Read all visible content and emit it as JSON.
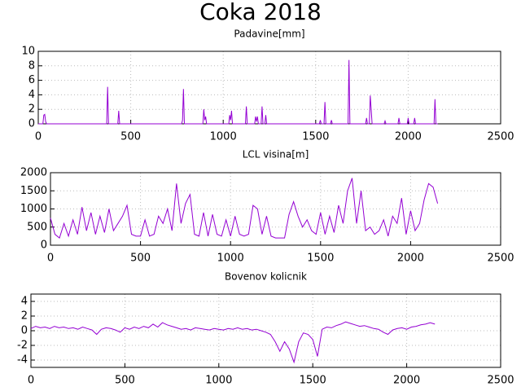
{
  "title": "Coka 2018",
  "chart_data": [
    {
      "type": "line",
      "title": "Padavine[mm]",
      "color": "#9400d3",
      "grid": true,
      "xlim": [
        0,
        2500
      ],
      "xticks": [
        0,
        500,
        1000,
        1500,
        2000,
        2500
      ],
      "ylim": [
        0,
        10
      ],
      "yticks": [
        0,
        2,
        4,
        6,
        8,
        10
      ],
      "x": [
        0,
        25,
        30,
        35,
        40,
        45,
        370,
        375,
        380,
        430,
        435,
        440,
        775,
        780,
        785,
        790,
        890,
        895,
        900,
        905,
        910,
        1030,
        1035,
        1040,
        1045,
        1050,
        1120,
        1125,
        1130,
        1170,
        1175,
        1180,
        1185,
        1190,
        1205,
        1210,
        1215,
        1225,
        1230,
        1235,
        1520,
        1525,
        1530,
        1545,
        1550,
        1555,
        1580,
        1585,
        1590,
        1675,
        1680,
        1685,
        1770,
        1775,
        1780,
        1790,
        1795,
        1800,
        1805,
        1870,
        1875,
        1880,
        1945,
        1950,
        1955,
        1995,
        2000,
        2005,
        2030,
        2035,
        2040,
        2140,
        2145,
        2150,
        2160
      ],
      "values": [
        0,
        0,
        1.2,
        1.3,
        0.3,
        0,
        0,
        5.1,
        0,
        0,
        1.8,
        0,
        0,
        0.5,
        4.8,
        0,
        0,
        2,
        0.5,
        1,
        0,
        0,
        1.2,
        0.5,
        1.8,
        0,
        0,
        2.4,
        0,
        0,
        1,
        0.3,
        1,
        0,
        0,
        2.4,
        0,
        0,
        1.2,
        0,
        0,
        0.5,
        0,
        0,
        3,
        0,
        0,
        0.5,
        0,
        0,
        8.8,
        0,
        0,
        0.8,
        0,
        0,
        3.9,
        2,
        0,
        0,
        0.4,
        0,
        0,
        0.8,
        0,
        0,
        0.8,
        0,
        0,
        0.8,
        0,
        0,
        3.4,
        0,
        0
      ]
    },
    {
      "type": "line",
      "title": "LCL visina[m]",
      "color": "#9400d3",
      "grid": true,
      "xlim": [
        0,
        2500
      ],
      "xticks": [
        0,
        500,
        1000,
        1500,
        2000,
        2500
      ],
      "ylim": [
        0,
        2000
      ],
      "yticks": [
        0,
        500,
        1000,
        1500,
        2000
      ],
      "x": [
        0,
        25,
        50,
        75,
        100,
        125,
        150,
        175,
        200,
        225,
        250,
        275,
        300,
        325,
        350,
        375,
        400,
        425,
        450,
        475,
        500,
        525,
        550,
        575,
        600,
        625,
        650,
        675,
        700,
        725,
        750,
        775,
        800,
        825,
        850,
        875,
        900,
        925,
        950,
        975,
        1000,
        1025,
        1050,
        1075,
        1100,
        1125,
        1150,
        1175,
        1200,
        1225,
        1250,
        1275,
        1300,
        1325,
        1350,
        1375,
        1400,
        1425,
        1450,
        1475,
        1500,
        1525,
        1550,
        1575,
        1600,
        1625,
        1650,
        1675,
        1700,
        1725,
        1750,
        1775,
        1800,
        1825,
        1850,
        1875,
        1900,
        1925,
        1950,
        1975,
        2000,
        2025,
        2050,
        2075,
        2100,
        2125,
        2150
      ],
      "values": [
        750,
        300,
        200,
        600,
        250,
        700,
        300,
        1050,
        400,
        900,
        300,
        800,
        350,
        1000,
        400,
        600,
        800,
        1100,
        300,
        250,
        250,
        700,
        250,
        300,
        800,
        600,
        1000,
        400,
        1700,
        600,
        1150,
        1400,
        300,
        250,
        900,
        250,
        850,
        300,
        250,
        700,
        250,
        800,
        300,
        250,
        300,
        1100,
        1000,
        300,
        800,
        250,
        200,
        200,
        200,
        850,
        1200,
        800,
        500,
        700,
        400,
        300,
        900,
        300,
        800,
        350,
        1100,
        600,
        1500,
        1850,
        600,
        1500,
        400,
        500,
        300,
        400,
        700,
        250,
        800,
        600,
        1300,
        300,
        950,
        400,
        600,
        1250,
        1700,
        1600,
        1150
      ]
    },
    {
      "type": "line",
      "title": "Bovenov kolicnik",
      "color": "#9400d3",
      "grid": true,
      "xlim": [
        0,
        2500
      ],
      "xticks": [
        0,
        500,
        1000,
        1500,
        2000,
        2500
      ],
      "ylim": [
        -5,
        5
      ],
      "yticks": [
        -4,
        -2,
        0,
        2,
        4
      ],
      "x": [
        0,
        25,
        50,
        75,
        100,
        125,
        150,
        175,
        200,
        225,
        250,
        275,
        300,
        325,
        350,
        375,
        400,
        425,
        450,
        475,
        500,
        525,
        550,
        575,
        600,
        625,
        650,
        675,
        700,
        725,
        750,
        775,
        800,
        825,
        850,
        875,
        900,
        925,
        950,
        975,
        1000,
        1025,
        1050,
        1075,
        1100,
        1125,
        1150,
        1175,
        1200,
        1225,
        1250,
        1275,
        1300,
        1325,
        1350,
        1375,
        1400,
        1425,
        1450,
        1475,
        1500,
        1525,
        1550,
        1575,
        1600,
        1625,
        1650,
        1675,
        1700,
        1725,
        1750,
        1775,
        1800,
        1825,
        1850,
        1875,
        1900,
        1925,
        1950,
        1975,
        2000,
        2025,
        2050,
        2075,
        2100,
        2125,
        2150
      ],
      "values": [
        0.3,
        0.6,
        0.4,
        0.5,
        0.3,
        0.6,
        0.4,
        0.5,
        0.3,
        0.4,
        0.2,
        0.5,
        0.3,
        0.1,
        -0.5,
        0.2,
        0.4,
        0.3,
        0.1,
        -0.2,
        0.4,
        0.2,
        0.5,
        0.3,
        0.6,
        0.4,
        0.9,
        0.5,
        1.1,
        0.8,
        0.6,
        0.4,
        0.2,
        0.3,
        0.1,
        0.4,
        0.3,
        0.2,
        0.1,
        0.3,
        0.2,
        0.1,
        0.3,
        0.2,
        0.4,
        0.2,
        0.3,
        0.1,
        0.2,
        0.0,
        -0.2,
        -0.5,
        -1.5,
        -2.8,
        -1.5,
        -2.5,
        -4.3,
        -1.5,
        -0.3,
        -0.5,
        -1.2,
        -3.5,
        0.2,
        0.5,
        0.4,
        0.7,
        0.9,
        1.2,
        1.0,
        0.8,
        0.6,
        0.7,
        0.5,
        0.3,
        0.2,
        -0.2,
        -0.5,
        0.1,
        0.3,
        0.4,
        0.2,
        0.5,
        0.6,
        0.8,
        0.9,
        1.1,
        0.9
      ]
    }
  ]
}
